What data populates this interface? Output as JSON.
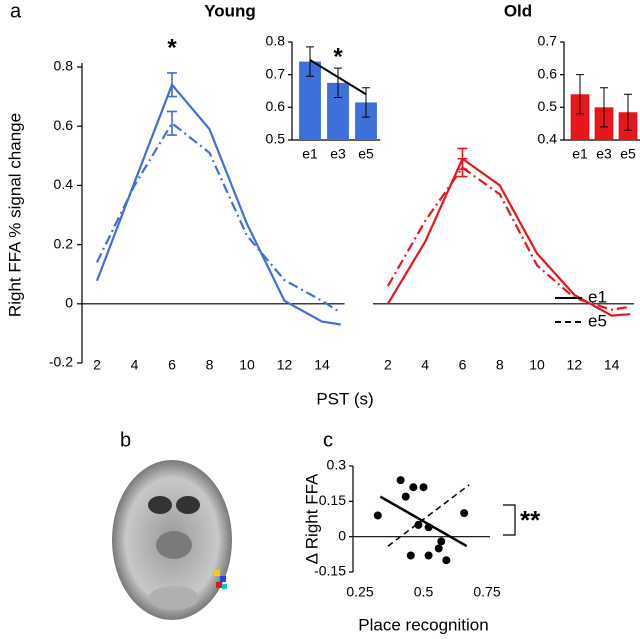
{
  "image_panel": {
    "label": "b"
  },
  "chart_data": [
    {
      "type": "line",
      "panel": "a",
      "title": "Young",
      "ylabel": "Right FFA % signal change",
      "xlabel": "PST (s)",
      "annotation": "*",
      "x": [
        2,
        4,
        6,
        8,
        10,
        12,
        14,
        15
      ],
      "xlim": [
        1.2,
        15.2
      ],
      "xticks": [
        2,
        4,
        6,
        8,
        10,
        12,
        14
      ],
      "ylim": [
        -0.2,
        0.8
      ],
      "yticks": [
        -0.2,
        0,
        0.2,
        0.4,
        0.6,
        0.8
      ],
      "series": [
        {
          "color": "#3f6fd8",
          "dash": "solid",
          "values": [
            0.078,
            0.41,
            0.74,
            0.59,
            0.27,
            0.01,
            -0.06,
            -0.07
          ],
          "errors": [
            null,
            null,
            0.04,
            null,
            null,
            null,
            null,
            null
          ]
        },
        {
          "color": "#3f6fd8",
          "dash": "dashdot",
          "values": [
            0.14,
            0.4,
            0.61,
            0.51,
            0.23,
            0.08,
            0.01,
            -0.03
          ],
          "errors": [
            null,
            null,
            0.04,
            null,
            null,
            null,
            null,
            null
          ]
        }
      ]
    },
    {
      "type": "bar",
      "categories": [
        "e1",
        "e3",
        "e5"
      ],
      "values": [
        0.74,
        0.675,
        0.615
      ],
      "errors": [
        0.045,
        0.045,
        0.045
      ],
      "color": "#3f6fd8",
      "ylim": [
        0.5,
        0.8
      ],
      "yticks": [
        0.5,
        0.6,
        0.7,
        0.8
      ],
      "trend": [
        0.745,
        0.64
      ],
      "annotation": "*"
    },
    {
      "type": "line",
      "title": "Old",
      "legend": "right",
      "legend_color": "#000000",
      "x": [
        2,
        4,
        6,
        8,
        10,
        12,
        14,
        15
      ],
      "xlim": [
        1.2,
        15.2
      ],
      "xticks": [
        2,
        4,
        6,
        8,
        10,
        12,
        14
      ],
      "ylim": [
        -0.2,
        0.8
      ],
      "series": [
        {
          "name": "e1",
          "color": "#e8161b",
          "dash": "solid",
          "values": [
            0,
            0.21,
            0.49,
            0.4,
            0.17,
            0.03,
            -0.04,
            -0.035
          ],
          "errors": [
            null,
            null,
            0.035,
            null,
            null,
            null,
            null,
            null
          ]
        },
        {
          "name": "e5",
          "color": "#e8161b",
          "dash": "dashdot",
          "values": [
            0.06,
            0.28,
            0.46,
            0.37,
            0.13,
            0.02,
            -0.02,
            -0.01
          ],
          "errors": [
            null,
            null,
            0.03,
            null,
            null,
            null,
            null,
            null
          ]
        }
      ]
    },
    {
      "type": "bar",
      "categories": [
        "e1",
        "e3",
        "e5"
      ],
      "values": [
        0.54,
        0.5,
        0.485
      ],
      "errors": [
        0.06,
        0.06,
        0.055
      ],
      "color": "#e8161b",
      "ylim": [
        0.4,
        0.7
      ],
      "yticks": [
        0.4,
        0.5,
        0.6,
        0.7
      ]
    },
    {
      "type": "scatter",
      "panel": "c",
      "xlabel": "Place recognition",
      "ylabel": "Δ Right FFA",
      "annotation": "**",
      "color": "#000000",
      "x": [
        0.32,
        0.41,
        0.46,
        0.5,
        0.43,
        0.48,
        0.52,
        0.66,
        0.45,
        0.52,
        0.59,
        0.56,
        0.57
      ],
      "y": [
        0.09,
        0.24,
        0.21,
        0.21,
        0.17,
        0.05,
        0.04,
        0.1,
        -0.08,
        -0.08,
        -0.1,
        -0.05,
        -0.02
      ],
      "xlim": [
        0.25,
        0.75
      ],
      "xticks": [
        0.25,
        0.5,
        0.75
      ],
      "ylim": [
        -0.15,
        0.3
      ],
      "yticks": [
        -0.15,
        0,
        0.15,
        0.3
      ],
      "lines": [
        {
          "style": "solid",
          "x": [
            0.33,
            0.67
          ],
          "y": [
            0.17,
            -0.04
          ]
        },
        {
          "style": "dashed",
          "x": [
            0.36,
            0.68
          ],
          "y": [
            -0.04,
            0.22
          ]
        }
      ]
    }
  ]
}
